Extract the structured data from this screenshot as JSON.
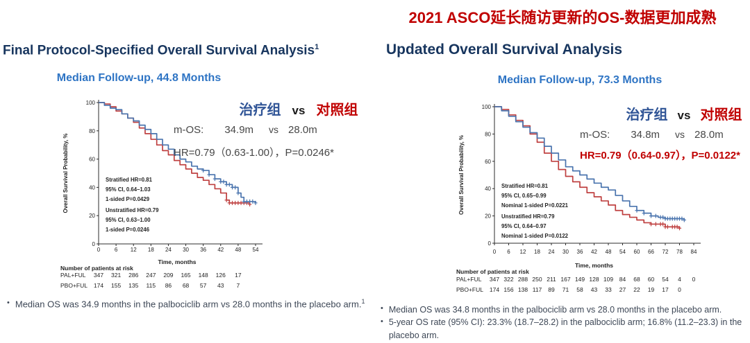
{
  "colors": {
    "navy_title": "#17355e",
    "followup_blue": "#2e74c4",
    "banner_red": "#c00000",
    "treatment_blue": "#2f5496",
    "curve_blue": "#4a74ae",
    "curve_red": "#bf4040",
    "body_text": "#3d4756"
  },
  "top_banner": "2021 ASCO延长随访更新的OS-数据更加成熟",
  "panels": [
    {
      "title": "Final Protocol-Specified Overall Survival Analysis",
      "title_sup": "1",
      "followup": "Median Follow-up, 44.8 Months",
      "comparison": {
        "treatment": "治疗组",
        "vs": "vs",
        "control": "对照组"
      },
      "mos": {
        "label": "m-OS:",
        "treatment": "34.9m",
        "vs": "vs",
        "control": "28.0m"
      },
      "hr_line": "HR=0.79（0.63-1.00），P=0.0246*",
      "bullets": [
        {
          "text": "Median OS was 34.9 months in the palbociclib arm vs 28.0 months in the placebo arm.",
          "sup": "1"
        }
      ]
    },
    {
      "title": "Updated Overall Survival Analysis",
      "title_sup": "",
      "followup": "Median Follow-up, 73.3 Months",
      "comparison": {
        "treatment": "治疗组",
        "vs": "vs",
        "control": "对照组"
      },
      "mos": {
        "label": "m-OS:",
        "treatment": "34.8m",
        "vs": "vs",
        "control": "28.0m"
      },
      "hr_line": "HR=0.79（0.64-0.97），P=0.0122*",
      "bullets": [
        {
          "text": "Median OS was 34.8 months in the palbociclib arm vs 28.0 months in the placebo arm.",
          "sup": ""
        },
        {
          "text": "5-year OS rate (95% CI): 23.3% (18.7–28.2) in the palbociclib arm; 16.8% (11.2–23.3) in the placebo arm.",
          "sup": ""
        }
      ]
    }
  ],
  "chart_data": [
    {
      "type": "line",
      "title": "Final Protocol-Specified Overall Survival Analysis",
      "subtitle": "Median Follow-up, 44.8 Months",
      "xlabel": "Time, months",
      "ylabel": "Overall Survival Probability, %",
      "xlim": [
        0,
        54
      ],
      "ylim": [
        0,
        100
      ],
      "xticks": [
        0,
        6,
        12,
        18,
        24,
        30,
        36,
        42,
        48,
        54
      ],
      "yticks": [
        0,
        20,
        40,
        60,
        80,
        100
      ],
      "grid": false,
      "legend_position": "none",
      "series": [
        {
          "name": "PAL+FUL",
          "color": "#4a74ae",
          "x": [
            0,
            2,
            4,
            6,
            8,
            10,
            12,
            14,
            16,
            18,
            20,
            22,
            24,
            26,
            28,
            30,
            32,
            34,
            36,
            38,
            40,
            42,
            44,
            46,
            48,
            49,
            50,
            54
          ],
          "y": [
            100,
            98,
            96,
            95,
            92,
            89,
            87,
            84,
            81,
            78,
            74,
            70,
            67,
            63,
            60,
            58,
            55,
            53,
            52,
            49,
            46,
            44,
            42,
            40,
            36,
            33,
            30,
            29
          ],
          "censors": [
            36,
            38,
            40,
            42,
            43,
            44,
            45,
            46,
            47,
            48,
            50,
            51,
            52,
            53,
            54
          ]
        },
        {
          "name": "PBO+FUL",
          "color": "#bf4040",
          "x": [
            0,
            2,
            4,
            6,
            8,
            10,
            12,
            14,
            16,
            18,
            20,
            22,
            24,
            26,
            28,
            30,
            32,
            34,
            36,
            38,
            40,
            42,
            44,
            45,
            52
          ],
          "y": [
            100,
            99,
            97,
            94,
            92,
            89,
            86,
            82,
            78,
            74,
            70,
            66,
            63,
            59,
            56,
            53,
            50,
            47,
            45,
            42,
            39,
            36,
            31,
            29,
            28
          ],
          "censors": [
            44,
            45,
            46,
            47,
            48,
            49,
            50,
            51,
            52
          ]
        }
      ],
      "annotations": [
        [
          "Stratified HR=0.81",
          "95% CI, 0.64–1.03",
          "1-sided P=0.0429"
        ],
        [
          "Unstratified HR=0.79",
          "95% CI, 0.63–1.00",
          "1-sided P=0.0246"
        ]
      ],
      "at_risk": {
        "caption": "Number of patients at risk",
        "rows": [
          {
            "label": "PAL+FUL",
            "values": [
              347,
              321,
              286,
              247,
              209,
              165,
              148,
              126,
              17
            ]
          },
          {
            "label": "PBO+FUL",
            "values": [
              174,
              155,
              135,
              115,
              86,
              68,
              57,
              43,
              7
            ]
          }
        ]
      }
    },
    {
      "type": "line",
      "title": "Updated Overall Survival Analysis",
      "subtitle": "Median Follow-up, 73.3 Months",
      "xlabel": "Time, months",
      "ylabel": "Overall Survival Probability, %",
      "xlim": [
        0,
        84
      ],
      "ylim": [
        0,
        100
      ],
      "xticks": [
        0,
        6,
        12,
        18,
        24,
        30,
        36,
        42,
        48,
        54,
        60,
        66,
        72,
        78,
        84
      ],
      "yticks": [
        0,
        20,
        40,
        60,
        80,
        100
      ],
      "grid": false,
      "legend_position": "none",
      "series": [
        {
          "name": "PAL+FUL",
          "color": "#4a74ae",
          "x": [
            0,
            3,
            6,
            9,
            12,
            15,
            18,
            21,
            24,
            27,
            30,
            33,
            36,
            39,
            42,
            45,
            48,
            51,
            54,
            57,
            60,
            63,
            66,
            69,
            72,
            80
          ],
          "y": [
            100,
            97,
            93,
            89,
            85,
            81,
            77,
            71,
            66,
            61,
            56,
            53,
            50,
            47,
            44,
            41,
            39,
            35,
            31,
            27,
            24,
            22,
            20,
            19,
            18,
            17
          ],
          "censors": [
            60,
            63,
            66,
            68,
            70,
            71,
            72,
            73,
            74,
            75,
            76,
            77,
            78,
            79,
            80
          ]
        },
        {
          "name": "PBO+FUL",
          "color": "#bf4040",
          "x": [
            0,
            3,
            6,
            9,
            12,
            15,
            18,
            21,
            24,
            27,
            30,
            33,
            36,
            39,
            42,
            45,
            48,
            51,
            54,
            57,
            60,
            63,
            66,
            72,
            78
          ],
          "y": [
            100,
            98,
            94,
            90,
            86,
            80,
            74,
            66,
            60,
            54,
            49,
            45,
            41,
            37,
            34,
            31,
            28,
            24,
            21,
            19,
            17,
            15,
            14,
            12,
            11
          ],
          "censors": [
            66,
            68,
            70,
            71,
            72,
            73,
            75,
            76,
            77,
            78
          ]
        }
      ],
      "annotations": [
        [
          "Stratified HR=0.81",
          "95% CI, 0.65–0.99",
          "Nominal 1-sided P=0.0221"
        ],
        [
          "Unstratified HR=0.79",
          "95% CI, 0.64–0.97",
          "Nominal 1-sided P=0.0122"
        ]
      ],
      "at_risk": {
        "caption": "Number of patients at risk",
        "rows": [
          {
            "label": "PAL+FUL",
            "values": [
              347,
              322,
              288,
              250,
              211,
              167,
              149,
              128,
              109,
              84,
              68,
              60,
              54,
              4,
              0
            ]
          },
          {
            "label": "PBO+FUL",
            "values": [
              174,
              156,
              138,
              117,
              89,
              71,
              58,
              43,
              33,
              27,
              22,
              19,
              17,
              0
            ]
          }
        ]
      }
    }
  ]
}
